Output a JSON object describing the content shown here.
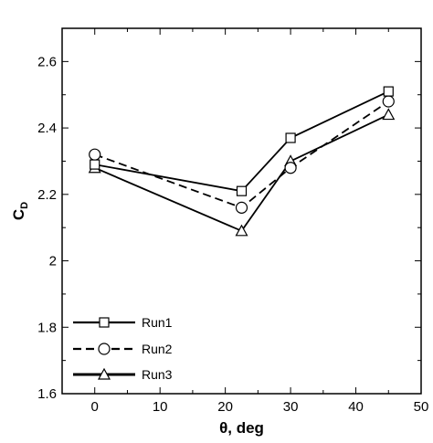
{
  "chart_data": {
    "type": "line",
    "xlabel": "θ, deg",
    "ylabel": "C",
    "ylabel_subscript": "D",
    "xlim": [
      -5,
      50
    ],
    "ylim": [
      1.6,
      2.7
    ],
    "xticks": [
      0,
      10,
      20,
      30,
      40,
      50
    ],
    "xtick_labels": [
      "0",
      "10",
      "20",
      "30",
      "40",
      "50"
    ],
    "yticks": [
      1.6,
      1.8,
      2.0,
      2.2,
      2.4,
      2.6
    ],
    "ytick_labels": [
      "1.6",
      "1.8",
      "2",
      "2.2",
      "2.4",
      "2.6"
    ],
    "grid": false,
    "legend_position": "bottom-left",
    "series": [
      {
        "name": "Run1",
        "marker": "square",
        "line": "solid",
        "x": [
          0,
          22.5,
          30,
          45
        ],
        "y": [
          2.29,
          2.21,
          2.37,
          2.51
        ]
      },
      {
        "name": "Run2",
        "marker": "circle",
        "line": "dashed",
        "x": [
          0,
          22.5,
          30,
          45
        ],
        "y": [
          2.32,
          2.16,
          2.28,
          2.48
        ]
      },
      {
        "name": "Run3",
        "marker": "triangle",
        "line": "solid",
        "x": [
          0,
          22.5,
          30,
          45
        ],
        "y": [
          2.28,
          2.09,
          2.3,
          2.44
        ]
      }
    ]
  }
}
